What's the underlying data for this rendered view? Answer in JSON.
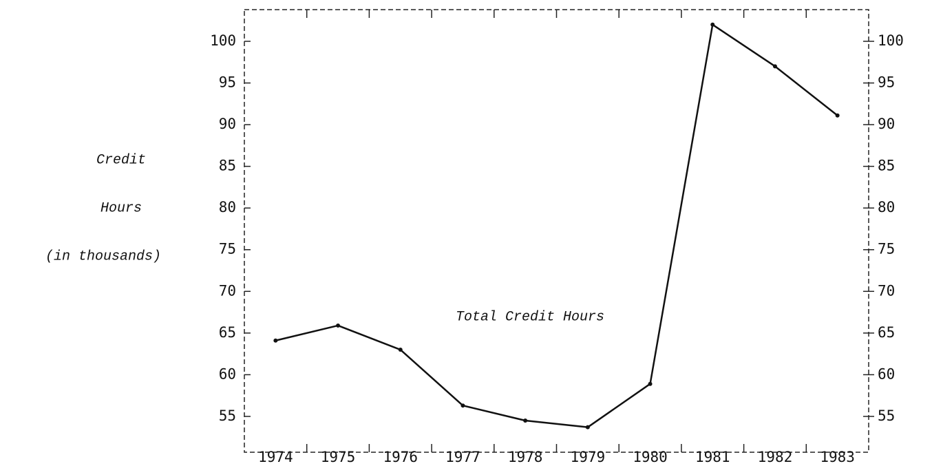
{
  "chart_data": {
    "type": "line",
    "ylabel": [
      "Credit",
      "Hours",
      "(in thousands)"
    ],
    "annotation": "Total Credit Hours",
    "categories": [
      "1974",
      "1975",
      "1976",
      "1977",
      "1978",
      "1979",
      "1980",
      "1981",
      "1982",
      "1983"
    ],
    "series": [
      {
        "name": "Total Credit Hours",
        "color": "#111111",
        "values": [
          64.1,
          65.9,
          63,
          56.3,
          54.5,
          53.7,
          58.9,
          102,
          97,
          91.1
        ]
      }
    ],
    "ylim": [
      50.7,
      103.8
    ],
    "yticks": [
      55,
      60,
      65,
      70,
      75,
      80,
      85,
      90,
      95,
      100
    ],
    "grid": false
  }
}
